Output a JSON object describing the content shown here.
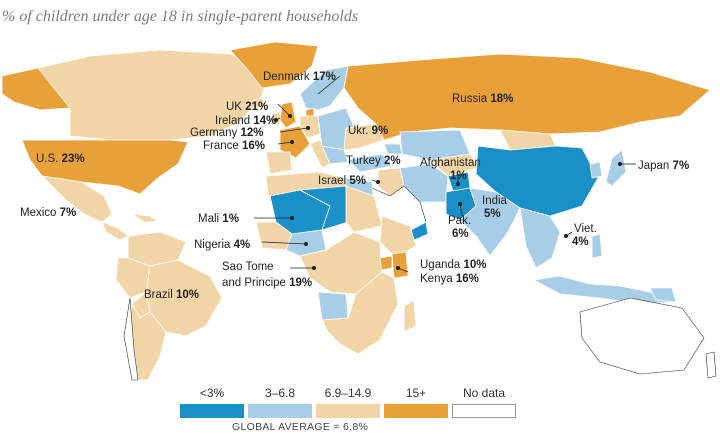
{
  "title": "% of children under age 18 in single-parent households",
  "colors": {
    "lt3": "#1a8fc8",
    "c3to68": "#a8cde6",
    "c69to149": "#f2d5a6",
    "c15plus": "#e8a038",
    "nodata": "#ffffff",
    "border": "#ffffff",
    "outline": "#333333"
  },
  "legend": [
    {
      "label": "<3%",
      "color": "#1a8fc8"
    },
    {
      "label": "3–6.8",
      "color": "#a8cde6"
    },
    {
      "label": "6.9–14.9",
      "color": "#f2d5a6"
    },
    {
      "label": "15+",
      "color": "#e8a038"
    },
    {
      "label": "No data",
      "color": "#ffffff"
    }
  ],
  "global_average": "GLOBAL AVERAGE = 6.8%",
  "labels": {
    "denmark": {
      "name": "Denmark",
      "value": "17%"
    },
    "uk": {
      "name": "UK",
      "value": "21%"
    },
    "ireland": {
      "name": "Ireland",
      "value": "14%"
    },
    "germany": {
      "name": "Germany",
      "value": "12%"
    },
    "france": {
      "name": "France",
      "value": "16%"
    },
    "russia": {
      "name": "Russia",
      "value": "18%"
    },
    "ukraine": {
      "name": "Ukr.",
      "value": "9%"
    },
    "turkey": {
      "name": "Turkey",
      "value": "2%"
    },
    "afghanistan": {
      "name": "Afghanistan",
      "value": "1%"
    },
    "israel": {
      "name": "Israel",
      "value": "5%"
    },
    "us": {
      "name": "U.S.",
      "value": "23%"
    },
    "mexico": {
      "name": "Mexico",
      "value": "7%"
    },
    "japan": {
      "name": "Japan",
      "value": "7%"
    },
    "india": {
      "name": "India",
      "value": "5%"
    },
    "pakistan": {
      "name": "Pak.",
      "value": "6%"
    },
    "vietnam": {
      "name": "Viet.",
      "value": "4%"
    },
    "mali": {
      "name": "Mali",
      "value": "1%"
    },
    "nigeria": {
      "name": "Nigeria",
      "value": "4%"
    },
    "saotome_line1": {
      "name": "Sao Tome",
      "value": ""
    },
    "saotome_line2": {
      "name": "and Principe",
      "value": "19%"
    },
    "uganda": {
      "name": "Uganda",
      "value": "10%"
    },
    "kenya": {
      "name": "Kenya",
      "value": "16%"
    },
    "brazil": {
      "name": "Brazil",
      "value": "10%"
    }
  }
}
